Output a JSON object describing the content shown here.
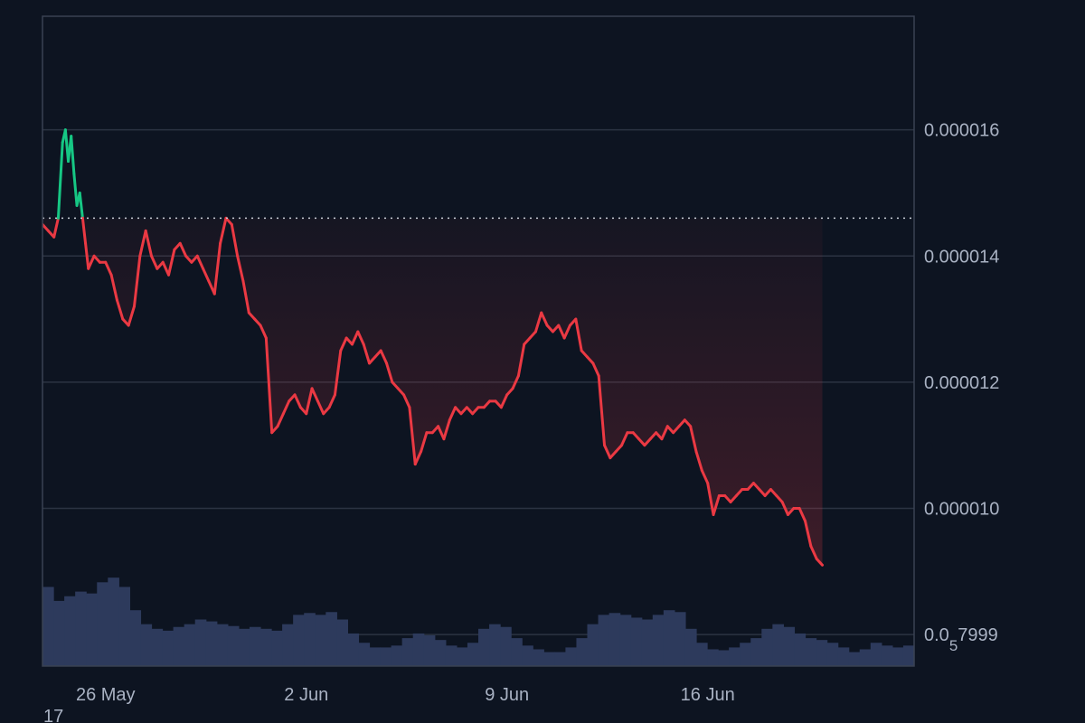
{
  "colors": {
    "background": "#0d1421",
    "grid": "#2b3342",
    "frame": "#3a4252",
    "down": "#ea3943",
    "up": "#16c784",
    "volume": "#2d3a5c",
    "reference": "#c8cdd6",
    "tick_text": "#a9b2c3"
  },
  "chart_data": {
    "type": "line",
    "title": "",
    "xlabel": "",
    "ylabel": "",
    "ylim": [
      7.5e-06,
      1.78e-05
    ],
    "y_ticks": [
      {
        "value": 1.6e-05,
        "label": "0.000016"
      },
      {
        "value": 1.4e-05,
        "label": "0.000014"
      },
      {
        "value": 1.2e-05,
        "label": "0.000012"
      },
      {
        "value": 1e-05,
        "label": "0.000010"
      },
      {
        "value": 8e-06,
        "label": "0.0",
        "sub": "5",
        "suffix": "7999"
      }
    ],
    "x_ticks": [
      {
        "day": 26,
        "label": "26 May"
      },
      {
        "day": 33,
        "label": "2 Jun"
      },
      {
        "day": 40,
        "label": "9 Jun"
      },
      {
        "day": 47,
        "label": "16 Jun"
      }
    ],
    "corner_label": "17",
    "xlim_days": [
      23.8,
      54.2
    ],
    "reference_price": 1.46e-05,
    "grid": true,
    "series": [
      {
        "points": [
          [
            23.8,
            14.5
          ],
          [
            24.0,
            14.4
          ],
          [
            24.2,
            14.3
          ],
          [
            24.35,
            14.6
          ],
          [
            24.5,
            15.8
          ],
          [
            24.6,
            16.0
          ],
          [
            24.7,
            15.5
          ],
          [
            24.8,
            15.9
          ],
          [
            24.9,
            15.3
          ],
          [
            25.0,
            14.8
          ],
          [
            25.1,
            15.0
          ],
          [
            25.2,
            14.6
          ],
          [
            25.3,
            14.2
          ],
          [
            25.4,
            13.8
          ],
          [
            25.6,
            14.0
          ],
          [
            25.8,
            13.9
          ],
          [
            26.0,
            13.9
          ],
          [
            26.2,
            13.7
          ],
          [
            26.4,
            13.3
          ],
          [
            26.6,
            13.0
          ],
          [
            26.8,
            12.9
          ],
          [
            27.0,
            13.2
          ],
          [
            27.2,
            14.0
          ],
          [
            27.4,
            14.4
          ],
          [
            27.6,
            14.0
          ],
          [
            27.8,
            13.8
          ],
          [
            28.0,
            13.9
          ],
          [
            28.2,
            13.7
          ],
          [
            28.4,
            14.1
          ],
          [
            28.6,
            14.2
          ],
          [
            28.8,
            14.0
          ],
          [
            29.0,
            13.9
          ],
          [
            29.2,
            14.0
          ],
          [
            29.4,
            13.8
          ],
          [
            29.6,
            13.6
          ],
          [
            29.8,
            13.4
          ],
          [
            30.0,
            14.2
          ],
          [
            30.2,
            14.6
          ],
          [
            30.4,
            14.5
          ],
          [
            30.6,
            14.0
          ],
          [
            30.8,
            13.6
          ],
          [
            31.0,
            13.1
          ],
          [
            31.2,
            13.0
          ],
          [
            31.4,
            12.9
          ],
          [
            31.6,
            12.7
          ],
          [
            31.8,
            11.2
          ],
          [
            32.0,
            11.3
          ],
          [
            32.2,
            11.5
          ],
          [
            32.4,
            11.7
          ],
          [
            32.6,
            11.8
          ],
          [
            32.8,
            11.6
          ],
          [
            33.0,
            11.5
          ],
          [
            33.2,
            11.9
          ],
          [
            33.4,
            11.7
          ],
          [
            33.6,
            11.5
          ],
          [
            33.8,
            11.6
          ],
          [
            34.0,
            11.8
          ],
          [
            34.2,
            12.5
          ],
          [
            34.4,
            12.7
          ],
          [
            34.6,
            12.6
          ],
          [
            34.8,
            12.8
          ],
          [
            35.0,
            12.6
          ],
          [
            35.2,
            12.3
          ],
          [
            35.4,
            12.4
          ],
          [
            35.6,
            12.5
          ],
          [
            35.8,
            12.3
          ],
          [
            36.0,
            12.0
          ],
          [
            36.2,
            11.9
          ],
          [
            36.4,
            11.8
          ],
          [
            36.6,
            11.6
          ],
          [
            36.8,
            10.7
          ],
          [
            37.0,
            10.9
          ],
          [
            37.2,
            11.2
          ],
          [
            37.4,
            11.2
          ],
          [
            37.6,
            11.3
          ],
          [
            37.8,
            11.1
          ],
          [
            38.0,
            11.4
          ],
          [
            38.2,
            11.6
          ],
          [
            38.4,
            11.5
          ],
          [
            38.6,
            11.6
          ],
          [
            38.8,
            11.5
          ],
          [
            39.0,
            11.6
          ],
          [
            39.2,
            11.6
          ],
          [
            39.4,
            11.7
          ],
          [
            39.6,
            11.7
          ],
          [
            39.8,
            11.6
          ],
          [
            40.0,
            11.8
          ],
          [
            40.2,
            11.9
          ],
          [
            40.4,
            12.1
          ],
          [
            40.6,
            12.6
          ],
          [
            40.8,
            12.7
          ],
          [
            41.0,
            12.8
          ],
          [
            41.2,
            13.1
          ],
          [
            41.4,
            12.9
          ],
          [
            41.6,
            12.8
          ],
          [
            41.8,
            12.9
          ],
          [
            42.0,
            12.7
          ],
          [
            42.2,
            12.9
          ],
          [
            42.4,
            13.0
          ],
          [
            42.6,
            12.5
          ],
          [
            42.8,
            12.4
          ],
          [
            43.0,
            12.3
          ],
          [
            43.2,
            12.1
          ],
          [
            43.4,
            11.0
          ],
          [
            43.6,
            10.8
          ],
          [
            43.8,
            10.9
          ],
          [
            44.0,
            11.0
          ],
          [
            44.2,
            11.2
          ],
          [
            44.4,
            11.2
          ],
          [
            44.6,
            11.1
          ],
          [
            44.8,
            11.0
          ],
          [
            45.0,
            11.1
          ],
          [
            45.2,
            11.2
          ],
          [
            45.4,
            11.1
          ],
          [
            45.6,
            11.3
          ],
          [
            45.8,
            11.2
          ],
          [
            46.0,
            11.3
          ],
          [
            46.2,
            11.4
          ],
          [
            46.4,
            11.3
          ],
          [
            46.6,
            10.9
          ],
          [
            46.8,
            10.6
          ],
          [
            47.0,
            10.4
          ],
          [
            47.2,
            9.9
          ],
          [
            47.4,
            10.2
          ],
          [
            47.6,
            10.2
          ],
          [
            47.8,
            10.1
          ],
          [
            48.0,
            10.2
          ],
          [
            48.2,
            10.3
          ],
          [
            48.4,
            10.3
          ],
          [
            48.6,
            10.4
          ],
          [
            48.8,
            10.3
          ],
          [
            49.0,
            10.2
          ],
          [
            49.2,
            10.3
          ],
          [
            49.4,
            10.2
          ],
          [
            49.6,
            10.1
          ],
          [
            49.8,
            9.9
          ],
          [
            50.0,
            10.0
          ],
          [
            50.2,
            10.0
          ],
          [
            50.4,
            9.8
          ],
          [
            50.6,
            9.4
          ],
          [
            50.8,
            9.2
          ],
          [
            51.0,
            9.1
          ]
        ]
      }
    ],
    "volume": [
      0.85,
      0.7,
      0.75,
      0.8,
      0.78,
      0.9,
      0.95,
      0.85,
      0.6,
      0.45,
      0.4,
      0.38,
      0.42,
      0.45,
      0.5,
      0.48,
      0.45,
      0.43,
      0.4,
      0.42,
      0.4,
      0.38,
      0.45,
      0.55,
      0.57,
      0.55,
      0.58,
      0.5,
      0.35,
      0.25,
      0.2,
      0.2,
      0.22,
      0.3,
      0.35,
      0.33,
      0.28,
      0.22,
      0.2,
      0.25,
      0.4,
      0.45,
      0.42,
      0.3,
      0.22,
      0.18,
      0.15,
      0.15,
      0.2,
      0.3,
      0.45,
      0.55,
      0.57,
      0.55,
      0.52,
      0.5,
      0.55,
      0.6,
      0.58,
      0.4,
      0.25,
      0.18,
      0.17,
      0.2,
      0.25,
      0.3,
      0.4,
      0.45,
      0.42,
      0.35,
      0.3,
      0.28,
      0.25,
      0.2,
      0.15,
      0.18,
      0.25,
      0.22,
      0.2,
      0.22
    ]
  }
}
